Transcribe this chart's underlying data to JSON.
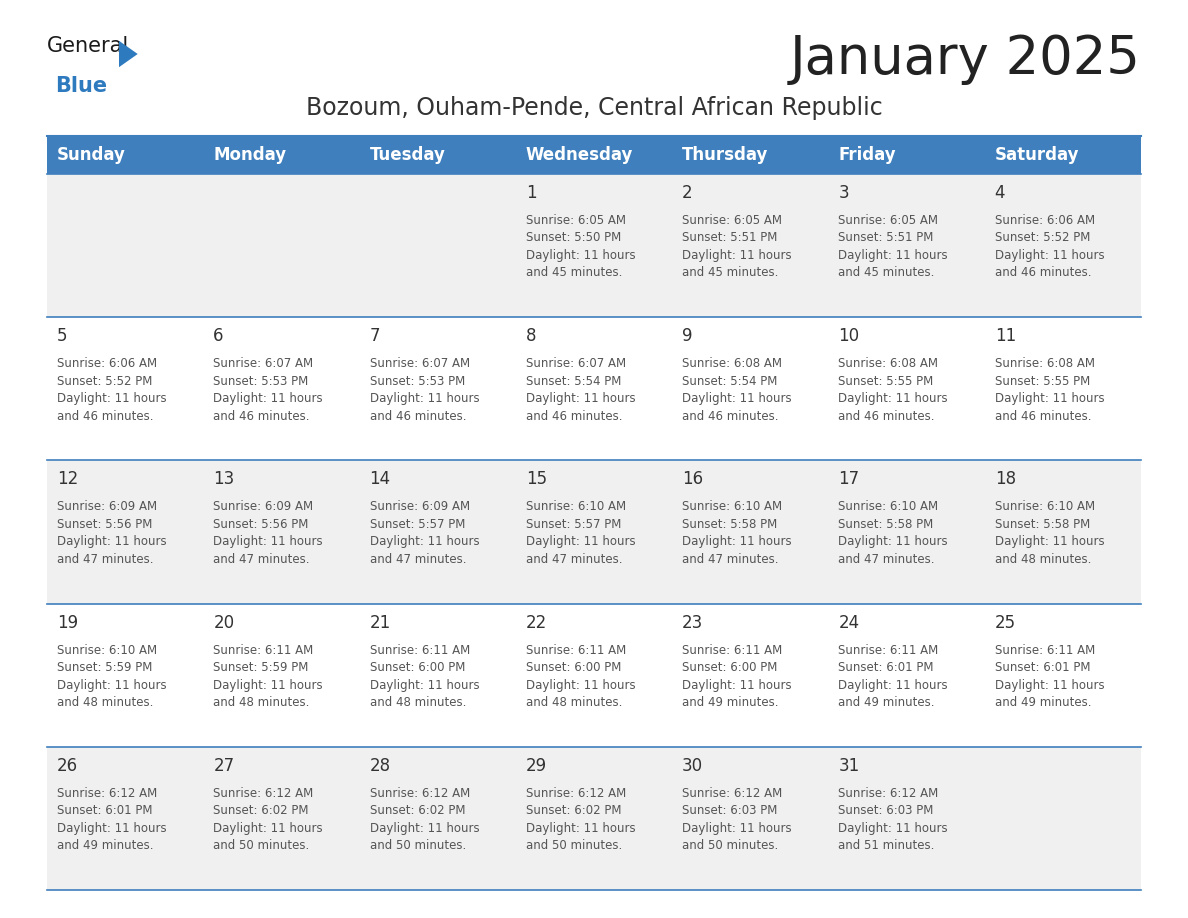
{
  "title": "January 2025",
  "subtitle": "Bozoum, Ouham-Pende, Central African Republic",
  "days_of_week": [
    "Sunday",
    "Monday",
    "Tuesday",
    "Wednesday",
    "Thursday",
    "Friday",
    "Saturday"
  ],
  "header_bg": "#3f7fbd",
  "header_text": "#ffffff",
  "odd_row_bg": "#f0f0f0",
  "even_row_bg": "#ffffff",
  "row_line_color": "#3f7fbd",
  "day_number_color": "#333333",
  "cell_text_color": "#555555",
  "title_color": "#222222",
  "subtitle_color": "#333333",
  "logo_general_color": "#1a1a1a",
  "logo_blue_color": "#2e7abf",
  "calendar_data": [
    {
      "day": 1,
      "col": 3,
      "row": 0,
      "sunrise": "6:05 AM",
      "sunset": "5:50 PM",
      "daylight_hours": 11,
      "daylight_minutes": 45
    },
    {
      "day": 2,
      "col": 4,
      "row": 0,
      "sunrise": "6:05 AM",
      "sunset": "5:51 PM",
      "daylight_hours": 11,
      "daylight_minutes": 45
    },
    {
      "day": 3,
      "col": 5,
      "row": 0,
      "sunrise": "6:05 AM",
      "sunset": "5:51 PM",
      "daylight_hours": 11,
      "daylight_minutes": 45
    },
    {
      "day": 4,
      "col": 6,
      "row": 0,
      "sunrise": "6:06 AM",
      "sunset": "5:52 PM",
      "daylight_hours": 11,
      "daylight_minutes": 46
    },
    {
      "day": 5,
      "col": 0,
      "row": 1,
      "sunrise": "6:06 AM",
      "sunset": "5:52 PM",
      "daylight_hours": 11,
      "daylight_minutes": 46
    },
    {
      "day": 6,
      "col": 1,
      "row": 1,
      "sunrise": "6:07 AM",
      "sunset": "5:53 PM",
      "daylight_hours": 11,
      "daylight_minutes": 46
    },
    {
      "day": 7,
      "col": 2,
      "row": 1,
      "sunrise": "6:07 AM",
      "sunset": "5:53 PM",
      "daylight_hours": 11,
      "daylight_minutes": 46
    },
    {
      "day": 8,
      "col": 3,
      "row": 1,
      "sunrise": "6:07 AM",
      "sunset": "5:54 PM",
      "daylight_hours": 11,
      "daylight_minutes": 46
    },
    {
      "day": 9,
      "col": 4,
      "row": 1,
      "sunrise": "6:08 AM",
      "sunset": "5:54 PM",
      "daylight_hours": 11,
      "daylight_minutes": 46
    },
    {
      "day": 10,
      "col": 5,
      "row": 1,
      "sunrise": "6:08 AM",
      "sunset": "5:55 PM",
      "daylight_hours": 11,
      "daylight_minutes": 46
    },
    {
      "day": 11,
      "col": 6,
      "row": 1,
      "sunrise": "6:08 AM",
      "sunset": "5:55 PM",
      "daylight_hours": 11,
      "daylight_minutes": 46
    },
    {
      "day": 12,
      "col": 0,
      "row": 2,
      "sunrise": "6:09 AM",
      "sunset": "5:56 PM",
      "daylight_hours": 11,
      "daylight_minutes": 47
    },
    {
      "day": 13,
      "col": 1,
      "row": 2,
      "sunrise": "6:09 AM",
      "sunset": "5:56 PM",
      "daylight_hours": 11,
      "daylight_minutes": 47
    },
    {
      "day": 14,
      "col": 2,
      "row": 2,
      "sunrise": "6:09 AM",
      "sunset": "5:57 PM",
      "daylight_hours": 11,
      "daylight_minutes": 47
    },
    {
      "day": 15,
      "col": 3,
      "row": 2,
      "sunrise": "6:10 AM",
      "sunset": "5:57 PM",
      "daylight_hours": 11,
      "daylight_minutes": 47
    },
    {
      "day": 16,
      "col": 4,
      "row": 2,
      "sunrise": "6:10 AM",
      "sunset": "5:58 PM",
      "daylight_hours": 11,
      "daylight_minutes": 47
    },
    {
      "day": 17,
      "col": 5,
      "row": 2,
      "sunrise": "6:10 AM",
      "sunset": "5:58 PM",
      "daylight_hours": 11,
      "daylight_minutes": 47
    },
    {
      "day": 18,
      "col": 6,
      "row": 2,
      "sunrise": "6:10 AM",
      "sunset": "5:58 PM",
      "daylight_hours": 11,
      "daylight_minutes": 48
    },
    {
      "day": 19,
      "col": 0,
      "row": 3,
      "sunrise": "6:10 AM",
      "sunset": "5:59 PM",
      "daylight_hours": 11,
      "daylight_minutes": 48
    },
    {
      "day": 20,
      "col": 1,
      "row": 3,
      "sunrise": "6:11 AM",
      "sunset": "5:59 PM",
      "daylight_hours": 11,
      "daylight_minutes": 48
    },
    {
      "day": 21,
      "col": 2,
      "row": 3,
      "sunrise": "6:11 AM",
      "sunset": "6:00 PM",
      "daylight_hours": 11,
      "daylight_minutes": 48
    },
    {
      "day": 22,
      "col": 3,
      "row": 3,
      "sunrise": "6:11 AM",
      "sunset": "6:00 PM",
      "daylight_hours": 11,
      "daylight_minutes": 48
    },
    {
      "day": 23,
      "col": 4,
      "row": 3,
      "sunrise": "6:11 AM",
      "sunset": "6:00 PM",
      "daylight_hours": 11,
      "daylight_minutes": 49
    },
    {
      "day": 24,
      "col": 5,
      "row": 3,
      "sunrise": "6:11 AM",
      "sunset": "6:01 PM",
      "daylight_hours": 11,
      "daylight_minutes": 49
    },
    {
      "day": 25,
      "col": 6,
      "row": 3,
      "sunrise": "6:11 AM",
      "sunset": "6:01 PM",
      "daylight_hours": 11,
      "daylight_minutes": 49
    },
    {
      "day": 26,
      "col": 0,
      "row": 4,
      "sunrise": "6:12 AM",
      "sunset": "6:01 PM",
      "daylight_hours": 11,
      "daylight_minutes": 49
    },
    {
      "day": 27,
      "col": 1,
      "row": 4,
      "sunrise": "6:12 AM",
      "sunset": "6:02 PM",
      "daylight_hours": 11,
      "daylight_minutes": 50
    },
    {
      "day": 28,
      "col": 2,
      "row": 4,
      "sunrise": "6:12 AM",
      "sunset": "6:02 PM",
      "daylight_hours": 11,
      "daylight_minutes": 50
    },
    {
      "day": 29,
      "col": 3,
      "row": 4,
      "sunrise": "6:12 AM",
      "sunset": "6:02 PM",
      "daylight_hours": 11,
      "daylight_minutes": 50
    },
    {
      "day": 30,
      "col": 4,
      "row": 4,
      "sunrise": "6:12 AM",
      "sunset": "6:03 PM",
      "daylight_hours": 11,
      "daylight_minutes": 50
    },
    {
      "day": 31,
      "col": 5,
      "row": 4,
      "sunrise": "6:12 AM",
      "sunset": "6:03 PM",
      "daylight_hours": 11,
      "daylight_minutes": 51
    }
  ]
}
